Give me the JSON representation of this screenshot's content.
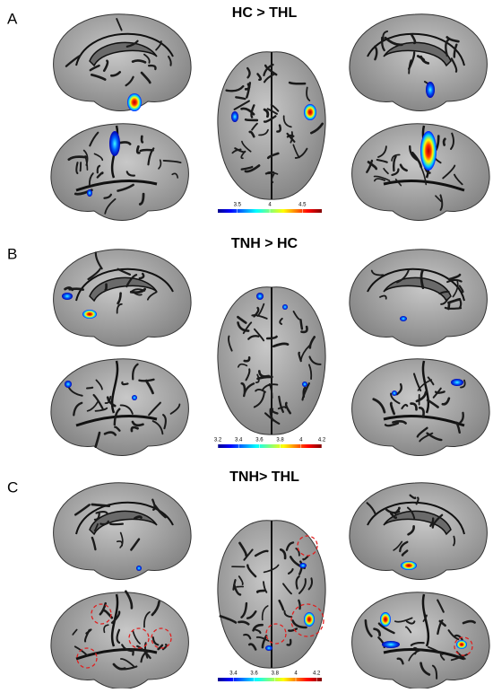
{
  "panels": [
    {
      "label": "A",
      "title": "HC > THL",
      "colorbar": {
        "lim": [
          3.2,
          4.8
        ],
        "ticks": [
          3.5,
          4,
          4.5
        ]
      }
    },
    {
      "label": "B",
      "title": "TNH > HC",
      "colorbar": {
        "lim": [
          3.2,
          4.2
        ],
        "ticks": [
          3.2,
          3.4,
          3.6,
          3.8,
          4,
          4.2
        ]
      }
    },
    {
      "label": "C",
      "title": "TNH> THL",
      "colorbar": {
        "lim": [
          3.25,
          4.25
        ],
        "ticks": [
          3.4,
          3.6,
          3.8,
          4,
          4.2
        ]
      }
    }
  ]
}
